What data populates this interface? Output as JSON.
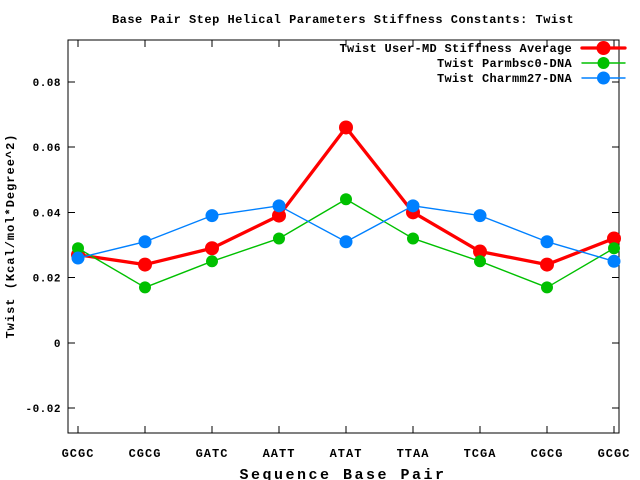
{
  "window": {
    "title": "Base Pair Step Helical Parameters Stiffness Constants: Twist"
  },
  "chart_data": {
    "type": "line",
    "title": "Base Pair Step Helical Parameters Stiffness Constants: Twist",
    "xlabel": "Sequence Base Pair",
    "ylabel": "Twist (Kcal/mol*Degree^2)",
    "categories": [
      "GCGC",
      "CGCG",
      "GATC",
      "AATT",
      "ATAT",
      "TTAA",
      "TCGA",
      "CGCG",
      "GCGC"
    ],
    "series": [
      {
        "name": "Twist User-MD Stiffness Average",
        "color": "#ff0000",
        "line_width": 3.3,
        "marker": "filled-circle",
        "marker_radius": 7,
        "values": [
          0.027,
          0.024,
          0.029,
          0.039,
          0.066,
          0.04,
          0.028,
          0.024,
          0.032
        ]
      },
      {
        "name": "Twist Parmbsc0-DNA",
        "color": "#00c000",
        "line_width": 1.4,
        "marker": "filled-circle",
        "marker_radius": 6,
        "values": [
          0.029,
          0.017,
          0.025,
          0.032,
          0.044,
          0.032,
          0.025,
          0.017,
          0.029
        ]
      },
      {
        "name": "Twist Charmm27-DNA",
        "color": "#0080ff",
        "line_width": 1.4,
        "marker": "filled-circle",
        "marker_radius": 6.5,
        "values": [
          0.026,
          0.031,
          0.039,
          0.042,
          0.031,
          0.042,
          0.039,
          0.031,
          0.025
        ]
      }
    ],
    "y_ticks": [
      "-0.02",
      "0",
      "0.02",
      "0.04",
      "0.06",
      "0.08"
    ],
    "y_tick_values": [
      -0.02,
      0,
      0.02,
      0.04,
      0.06,
      0.08
    ],
    "ylim": [
      -0.0276,
      0.0928
    ],
    "grid": false,
    "legend_position": "top-right-inside",
    "background_color": "#ffffff",
    "axis_color": "#000000"
  }
}
